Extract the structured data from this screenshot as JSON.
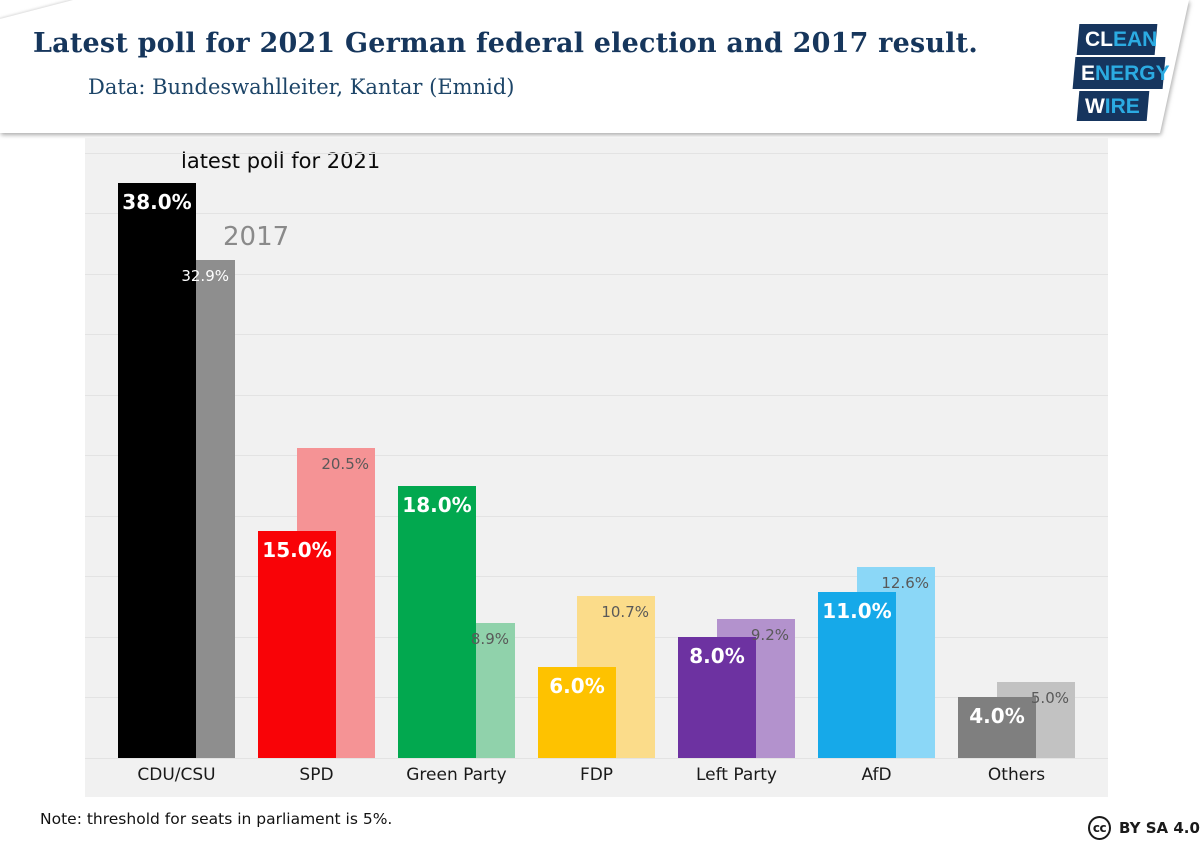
{
  "header": {
    "title": "Latest poll for 2021 German federal election and 2017 result.",
    "subtitle": "Data: Bundeswahlleiter, Kantar (Emnid)",
    "logo": {
      "lines": [
        {
          "white": "CL",
          "cyan": "EAN"
        },
        {
          "white": "E",
          "cyan": "NERGY"
        },
        {
          "white": "W",
          "cyan": "IRE"
        }
      ],
      "block_color": "#16355e",
      "cyan": "#2babe2"
    }
  },
  "chart_data": {
    "type": "bar",
    "annotation_2021": "latest poll for 2021",
    "annotation_2017": "2017",
    "categories": [
      "CDU/CSU",
      "SPD",
      "Green Party",
      "FDP",
      "Left Party",
      "AfD",
      "Others"
    ],
    "series": [
      {
        "name": "latest poll for 2021",
        "values": [
          38.0,
          15.0,
          18.0,
          6.0,
          8.0,
          11.0,
          4.0
        ],
        "labels": [
          "38.0%",
          "15.0%",
          "18.0%",
          "6.0%",
          "8.0%",
          "11.0%",
          "4.0%"
        ],
        "colors": [
          "#000000",
          "#f90307",
          "#02a84f",
          "#fec200",
          "#6d32a1",
          "#16a9e9",
          "#7f7f7f"
        ],
        "label_color": "#ffffff"
      },
      {
        "name": "2017",
        "values": [
          32.9,
          20.5,
          8.9,
          10.7,
          9.2,
          12.6,
          5.0
        ],
        "labels": [
          "32.9%",
          "20.5%",
          "8.9%",
          "10.7%",
          "9.2%",
          "12.6%",
          "5.0%"
        ],
        "colors": [
          "#8e8e8e",
          "#f59395",
          "#90d2ab",
          "#fbdc8a",
          "#b392cd",
          "#8bd7f7",
          "#c2c2c2"
        ],
        "label_colors": [
          "#ffffff",
          "#595959",
          "#595959",
          "#595959",
          "#595959",
          "#595959",
          "#595959"
        ]
      }
    ],
    "ylim": [
      0,
      40
    ],
    "gridline_step": 4,
    "grid": true,
    "plot_background": "#f1f1f1",
    "gridline_color": "#e3e3e3",
    "legend_position": "inline-annotations"
  },
  "footer": {
    "note": "Note: threshold for seats in parliament is 5%.",
    "license_icon": "cc",
    "license": "BY SA 4.0"
  }
}
